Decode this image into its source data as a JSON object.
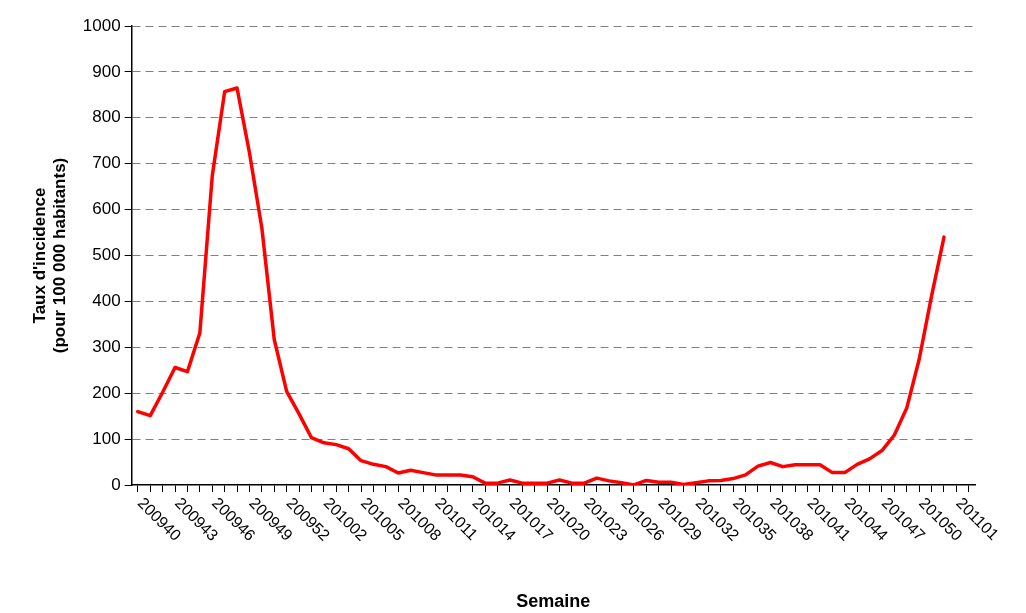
{
  "chart_data": {
    "type": "line",
    "xlabel": "Semaine",
    "ylabel": "Taux d'incidence\n(pour 100 000 habitants)",
    "categories": [
      "200940",
      null,
      null,
      "200943",
      null,
      null,
      "200946",
      null,
      null,
      "200949",
      null,
      null,
      "200952",
      null,
      null,
      "201002",
      null,
      null,
      "201005",
      null,
      null,
      "201008",
      null,
      null,
      "201011",
      null,
      null,
      "201014",
      null,
      null,
      "201017",
      null,
      null,
      "201020",
      null,
      null,
      "201023",
      null,
      null,
      "201026",
      null,
      null,
      "201029",
      null,
      null,
      "201032",
      null,
      null,
      "201035",
      null,
      null,
      "201038",
      null,
      null,
      "201041",
      null,
      null,
      "201044",
      null,
      null,
      "201047",
      null,
      null,
      "201050",
      null,
      null,
      "201101",
      null
    ],
    "series": [
      {
        "color": "#ff0000",
        "values": [
          160,
          151,
          202,
          256,
          247,
          331,
          673,
          857,
          865,
          724,
          560,
          317,
          204,
          155,
          103,
          92,
          88,
          79,
          53,
          45,
          40,
          26,
          32,
          27,
          22,
          22,
          22,
          18,
          4,
          4,
          11,
          4,
          4,
          4,
          11,
          4,
          4,
          15,
          9,
          5,
          0,
          10,
          6,
          6,
          1,
          5,
          9,
          10,
          14,
          22,
          41,
          49,
          40,
          44,
          44,
          44,
          27,
          27,
          45,
          57,
          75,
          109,
          168,
          274,
          412,
          540,
          null,
          null
        ]
      }
    ],
    "ylim": [
      0,
      1000
    ],
    "yticks": [
      0,
      100,
      200,
      300,
      400,
      500,
      600,
      700,
      800,
      900,
      1000
    ],
    "grid": "y",
    "legend": false,
    "marker": "none",
    "line_style": "solid"
  }
}
